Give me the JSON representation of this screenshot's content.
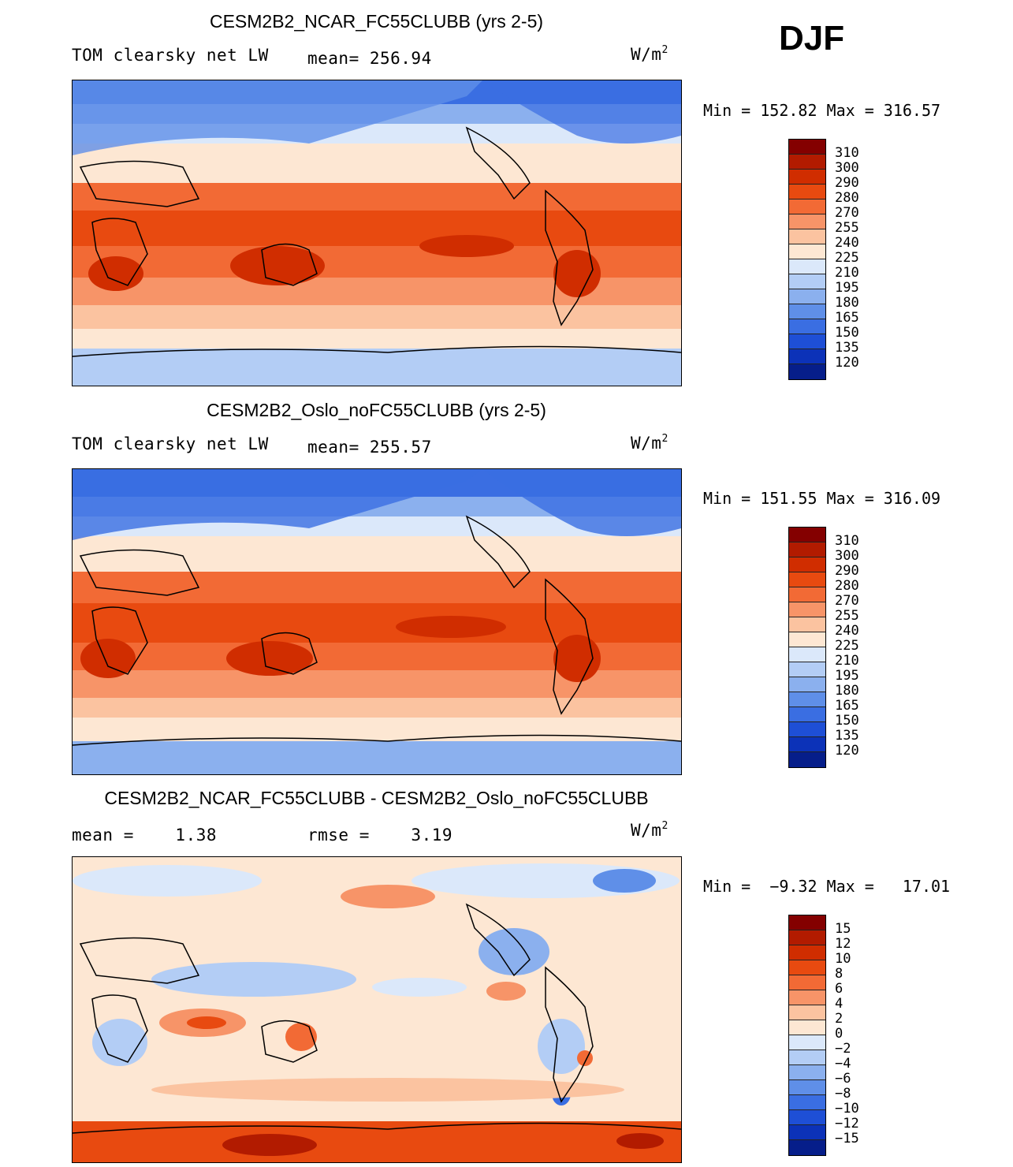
{
  "season": "DJF",
  "units": "W/m",
  "units_exp": "2",
  "panels": [
    {
      "title": "CESM2B2_NCAR_FC55CLUBB (yrs 2-5)",
      "left_label": "TOM clearsky net LW",
      "stat_label": "mean= 256.94",
      "minmax": "Min = 152.82 Max = 316.57",
      "colorbar_ticks": [
        "310",
        "300",
        "290",
        "280",
        "270",
        "255",
        "240",
        "225",
        "210",
        "195",
        "180",
        "165",
        "150",
        "135",
        "120"
      ],
      "colorbar_colors": [
        "#840000",
        "#b21b00",
        "#d02d00",
        "#e84a10",
        "#f26a35",
        "#f79468",
        "#fbc3a0",
        "#fde7d3",
        "#dbe8fa",
        "#b3cdf5",
        "#8bb0ee",
        "#5f8fe8",
        "#3a6ee2",
        "#1e4fd6",
        "#0c32b8",
        "#061e8a"
      ],
      "chart_data": {
        "type": "heatmap",
        "variable": "TOM clearsky net LW",
        "mean": 256.94,
        "min": 152.82,
        "max": 316.57,
        "levels": [
          120,
          135,
          150,
          165,
          180,
          195,
          210,
          225,
          240,
          255,
          270,
          280,
          290,
          300,
          310
        ]
      }
    },
    {
      "title": "CESM2B2_Oslo_noFC55CLUBB (yrs 2-5)",
      "left_label": "TOM clearsky net LW",
      "stat_label": "mean= 255.57",
      "minmax": "Min = 151.55 Max = 316.09",
      "colorbar_ticks": [
        "310",
        "300",
        "290",
        "280",
        "270",
        "255",
        "240",
        "225",
        "210",
        "195",
        "180",
        "165",
        "150",
        "135",
        "120"
      ],
      "colorbar_colors": [
        "#840000",
        "#b21b00",
        "#d02d00",
        "#e84a10",
        "#f26a35",
        "#f79468",
        "#fbc3a0",
        "#fde7d3",
        "#dbe8fa",
        "#b3cdf5",
        "#8bb0ee",
        "#5f8fe8",
        "#3a6ee2",
        "#1e4fd6",
        "#0c32b8",
        "#061e8a"
      ],
      "chart_data": {
        "type": "heatmap",
        "variable": "TOM clearsky net LW",
        "mean": 255.57,
        "min": 151.55,
        "max": 316.09,
        "levels": [
          120,
          135,
          150,
          165,
          180,
          195,
          210,
          225,
          240,
          255,
          270,
          280,
          290,
          300,
          310
        ]
      }
    },
    {
      "title": "CESM2B2_NCAR_FC55CLUBB - CESM2B2_Oslo_noFC55CLUBB",
      "left_label": "mean =    1.38",
      "stat_label": "rmse =    3.19",
      "minmax": "Min =  −9.32 Max =   17.01",
      "colorbar_ticks": [
        "15",
        "12",
        "10",
        "8",
        "6",
        "4",
        "2",
        "0",
        "−2",
        "−4",
        "−6",
        "−8",
        "−10",
        "−12",
        "−15"
      ],
      "colorbar_colors": [
        "#840000",
        "#b21b00",
        "#d02d00",
        "#e84a10",
        "#f26a35",
        "#f79468",
        "#fbc3a0",
        "#fde7d3",
        "#dbe8fa",
        "#b3cdf5",
        "#8bb0ee",
        "#5f8fe8",
        "#3a6ee2",
        "#1e4fd6",
        "#0c32b8",
        "#061e8a"
      ],
      "chart_data": {
        "type": "heatmap",
        "variable": "difference",
        "mean": 1.38,
        "rmse": 3.19,
        "min": -9.32,
        "max": 17.01,
        "levels": [
          -15,
          -12,
          -10,
          -8,
          -6,
          -4,
          -2,
          0,
          2,
          4,
          6,
          8,
          10,
          12,
          15
        ]
      }
    }
  ]
}
